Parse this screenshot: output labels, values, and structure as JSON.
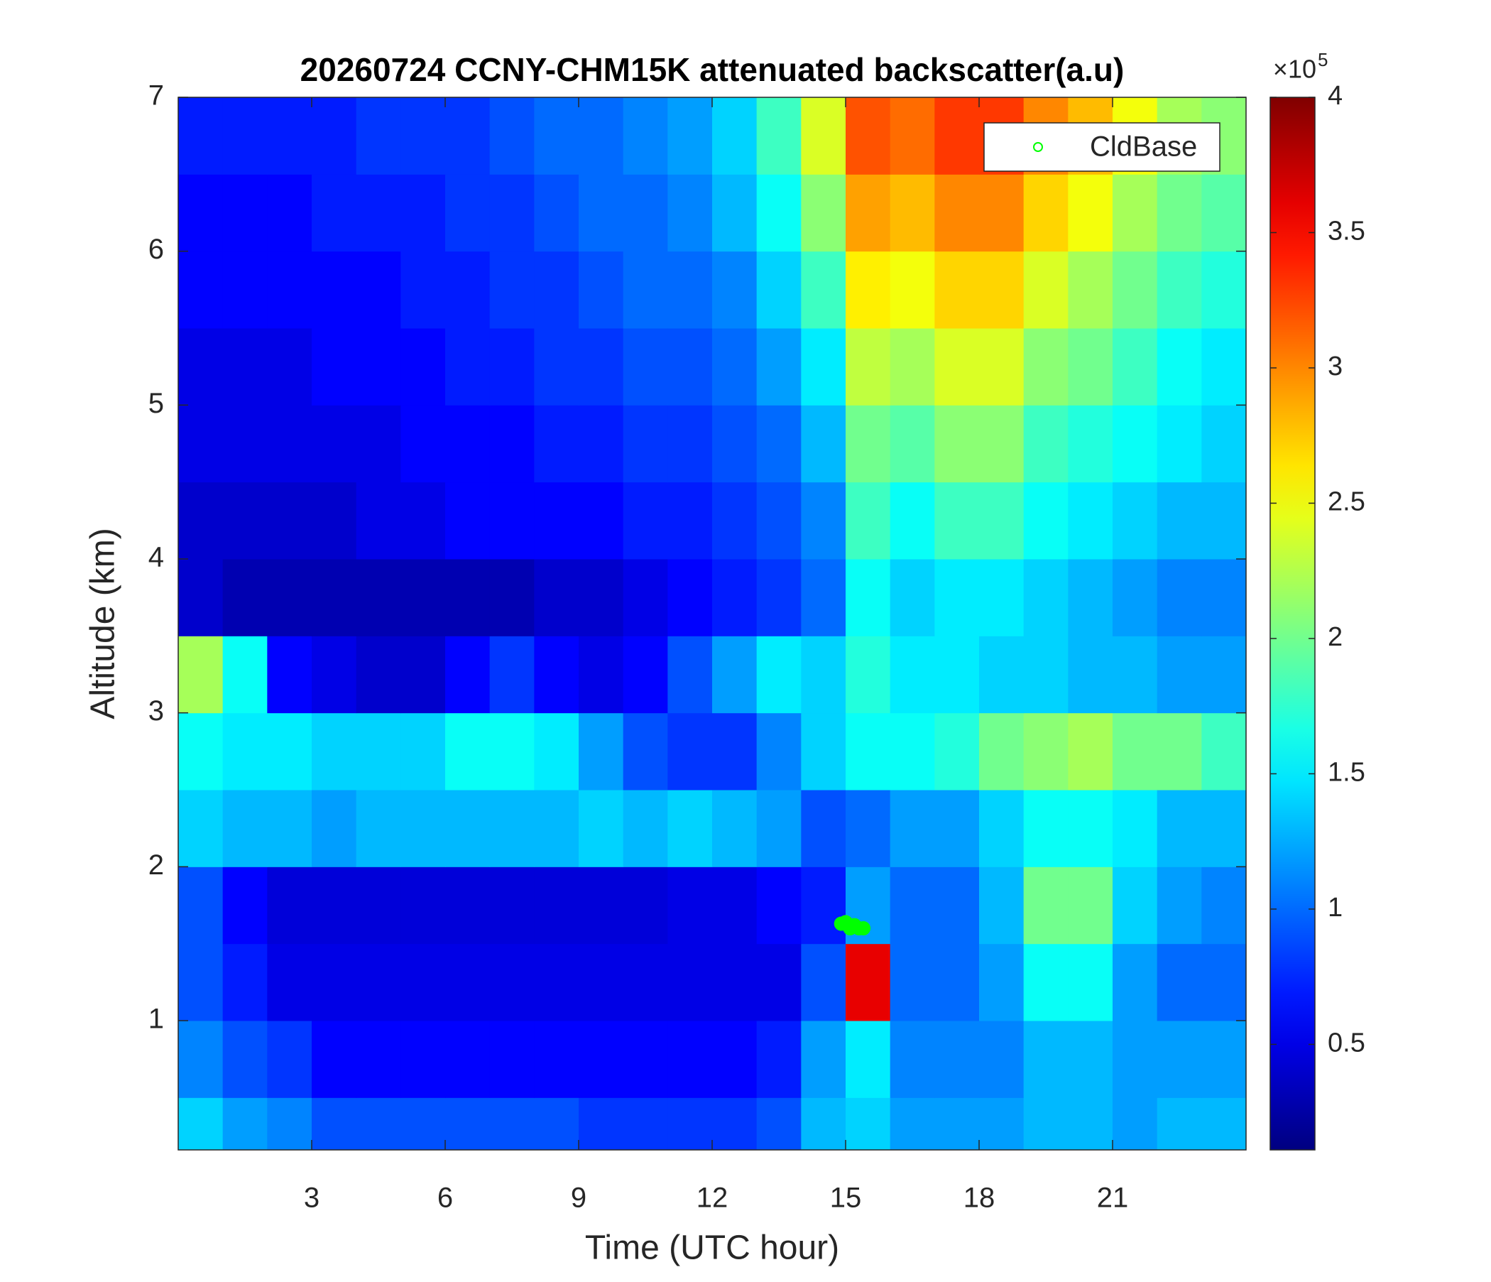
{
  "chart_data": {
    "type": "heatmap",
    "title": "20260724 CCNY-CHM15K attenuated backscatter(a.u)",
    "x_label": "Time (UTC hour)",
    "y_label": "Altitude (km)",
    "xlim": [
      0,
      24
    ],
    "xticks": [
      3,
      6,
      9,
      12,
      15,
      18,
      21
    ],
    "ylim": [
      0.16,
      7
    ],
    "yticks": [
      1,
      2,
      3,
      4,
      5,
      6,
      7
    ],
    "colormap": "jet",
    "clim": [
      0.11,
      4
    ],
    "colorbar_ticks": [
      0.5,
      1,
      1.5,
      2,
      2.5,
      3,
      3.5,
      4
    ],
    "colorbar_multiplier": {
      "base": "×10",
      "exponent": "5"
    },
    "x": [
      0.5,
      1.5,
      2.5,
      3.5,
      4.5,
      5.5,
      6.5,
      7.5,
      8.5,
      9.5,
      10.5,
      11.5,
      12.5,
      13.5,
      14.5,
      15.5,
      16.5,
      17.5,
      18.5,
      19.5,
      20.5,
      21.5,
      22.5,
      23.5
    ],
    "y": [
      0.25,
      0.75,
      1.25,
      1.75,
      2.25,
      2.75,
      3.25,
      3.75,
      4.25,
      4.75,
      5.25,
      5.75,
      6.25,
      6.75
    ],
    "z": [
      [
        1.4,
        1.2,
        1.1,
        0.9,
        0.9,
        0.9,
        0.9,
        0.9,
        0.9,
        0.8,
        0.8,
        0.8,
        0.8,
        0.9,
        1.3,
        1.4,
        1.2,
        1.2,
        1.2,
        1.3,
        1.3,
        1.2,
        1.3,
        1.3
      ],
      [
        1.1,
        0.9,
        0.8,
        0.6,
        0.6,
        0.6,
        0.6,
        0.6,
        0.6,
        0.6,
        0.6,
        0.6,
        0.6,
        0.7,
        1.2,
        1.5,
        1.1,
        1.1,
        1.1,
        1.3,
        1.3,
        1.2,
        1.2,
        1.2
      ],
      [
        0.9,
        0.7,
        0.5,
        0.5,
        0.5,
        0.5,
        0.5,
        0.5,
        0.5,
        0.5,
        0.5,
        0.5,
        0.5,
        0.5,
        0.9,
        3.6,
        1.0,
        1.0,
        1.2,
        1.6,
        1.6,
        1.2,
        1.0,
        1.0
      ],
      [
        0.9,
        0.6,
        0.45,
        0.45,
        0.45,
        0.45,
        0.45,
        0.45,
        0.45,
        0.45,
        0.45,
        0.5,
        0.5,
        0.6,
        0.7,
        1.2,
        1.0,
        1.0,
        1.3,
        2.0,
        2.0,
        1.4,
        1.2,
        1.1
      ],
      [
        1.4,
        1.3,
        1.3,
        1.2,
        1.3,
        1.3,
        1.3,
        1.3,
        1.3,
        1.4,
        1.3,
        1.4,
        1.3,
        1.2,
        0.9,
        1.0,
        1.2,
        1.2,
        1.4,
        1.6,
        1.6,
        1.5,
        1.3,
        1.3
      ],
      [
        1.6,
        1.5,
        1.5,
        1.4,
        1.4,
        1.4,
        1.6,
        1.6,
        1.5,
        1.2,
        0.9,
        0.8,
        0.8,
        1.1,
        1.4,
        1.6,
        1.6,
        1.7,
        2.0,
        2.1,
        2.2,
        2.0,
        2.0,
        1.8
      ],
      [
        2.2,
        1.6,
        0.6,
        0.5,
        0.4,
        0.4,
        0.6,
        0.8,
        0.6,
        0.5,
        0.6,
        0.9,
        1.2,
        1.5,
        1.4,
        1.7,
        1.5,
        1.5,
        1.4,
        1.4,
        1.3,
        1.3,
        1.2,
        1.2
      ],
      [
        0.4,
        0.3,
        0.3,
        0.3,
        0.3,
        0.3,
        0.3,
        0.3,
        0.4,
        0.4,
        0.5,
        0.6,
        0.7,
        0.8,
        1.0,
        1.6,
        1.4,
        1.5,
        1.5,
        1.4,
        1.3,
        1.2,
        1.1,
        1.1
      ],
      [
        0.4,
        0.4,
        0.4,
        0.4,
        0.5,
        0.5,
        0.6,
        0.6,
        0.6,
        0.6,
        0.7,
        0.7,
        0.8,
        0.9,
        1.1,
        1.8,
        1.6,
        1.8,
        1.8,
        1.6,
        1.5,
        1.4,
        1.3,
        1.3
      ],
      [
        0.5,
        0.5,
        0.5,
        0.5,
        0.5,
        0.6,
        0.6,
        0.6,
        0.7,
        0.7,
        0.8,
        0.8,
        0.9,
        1.0,
        1.3,
        2.0,
        1.9,
        2.1,
        2.1,
        1.8,
        1.7,
        1.6,
        1.5,
        1.4
      ],
      [
        0.5,
        0.5,
        0.5,
        0.6,
        0.6,
        0.6,
        0.7,
        0.7,
        0.8,
        0.8,
        0.9,
        0.9,
        1.0,
        1.2,
        1.5,
        2.3,
        2.2,
        2.4,
        2.4,
        2.1,
        2.0,
        1.8,
        1.6,
        1.5
      ],
      [
        0.6,
        0.6,
        0.6,
        0.6,
        0.6,
        0.7,
        0.7,
        0.8,
        0.8,
        0.9,
        1.0,
        1.0,
        1.1,
        1.4,
        1.8,
        2.6,
        2.5,
        2.7,
        2.7,
        2.4,
        2.2,
        2.0,
        1.8,
        1.7
      ],
      [
        0.6,
        0.6,
        0.6,
        0.7,
        0.7,
        0.7,
        0.8,
        0.8,
        0.9,
        1.0,
        1.0,
        1.1,
        1.3,
        1.6,
        2.1,
        2.9,
        2.8,
        3.0,
        3.0,
        2.7,
        2.5,
        2.2,
        2.0,
        1.9
      ],
      [
        0.7,
        0.7,
        0.7,
        0.7,
        0.8,
        0.8,
        0.8,
        0.9,
        1.0,
        1.0,
        1.1,
        1.2,
        1.4,
        1.8,
        2.4,
        3.2,
        3.1,
        3.3,
        3.3,
        3.0,
        2.8,
        2.5,
        2.2,
        2.1
      ]
    ],
    "cloud_base": {
      "name": "CldBase",
      "color": "#00ff00",
      "x": [
        14.9,
        15.0,
        15.1,
        15.2,
        15.3,
        15.4
      ],
      "y": [
        1.63,
        1.64,
        1.6,
        1.62,
        1.6,
        1.6
      ]
    },
    "legend_position": "top-right"
  }
}
